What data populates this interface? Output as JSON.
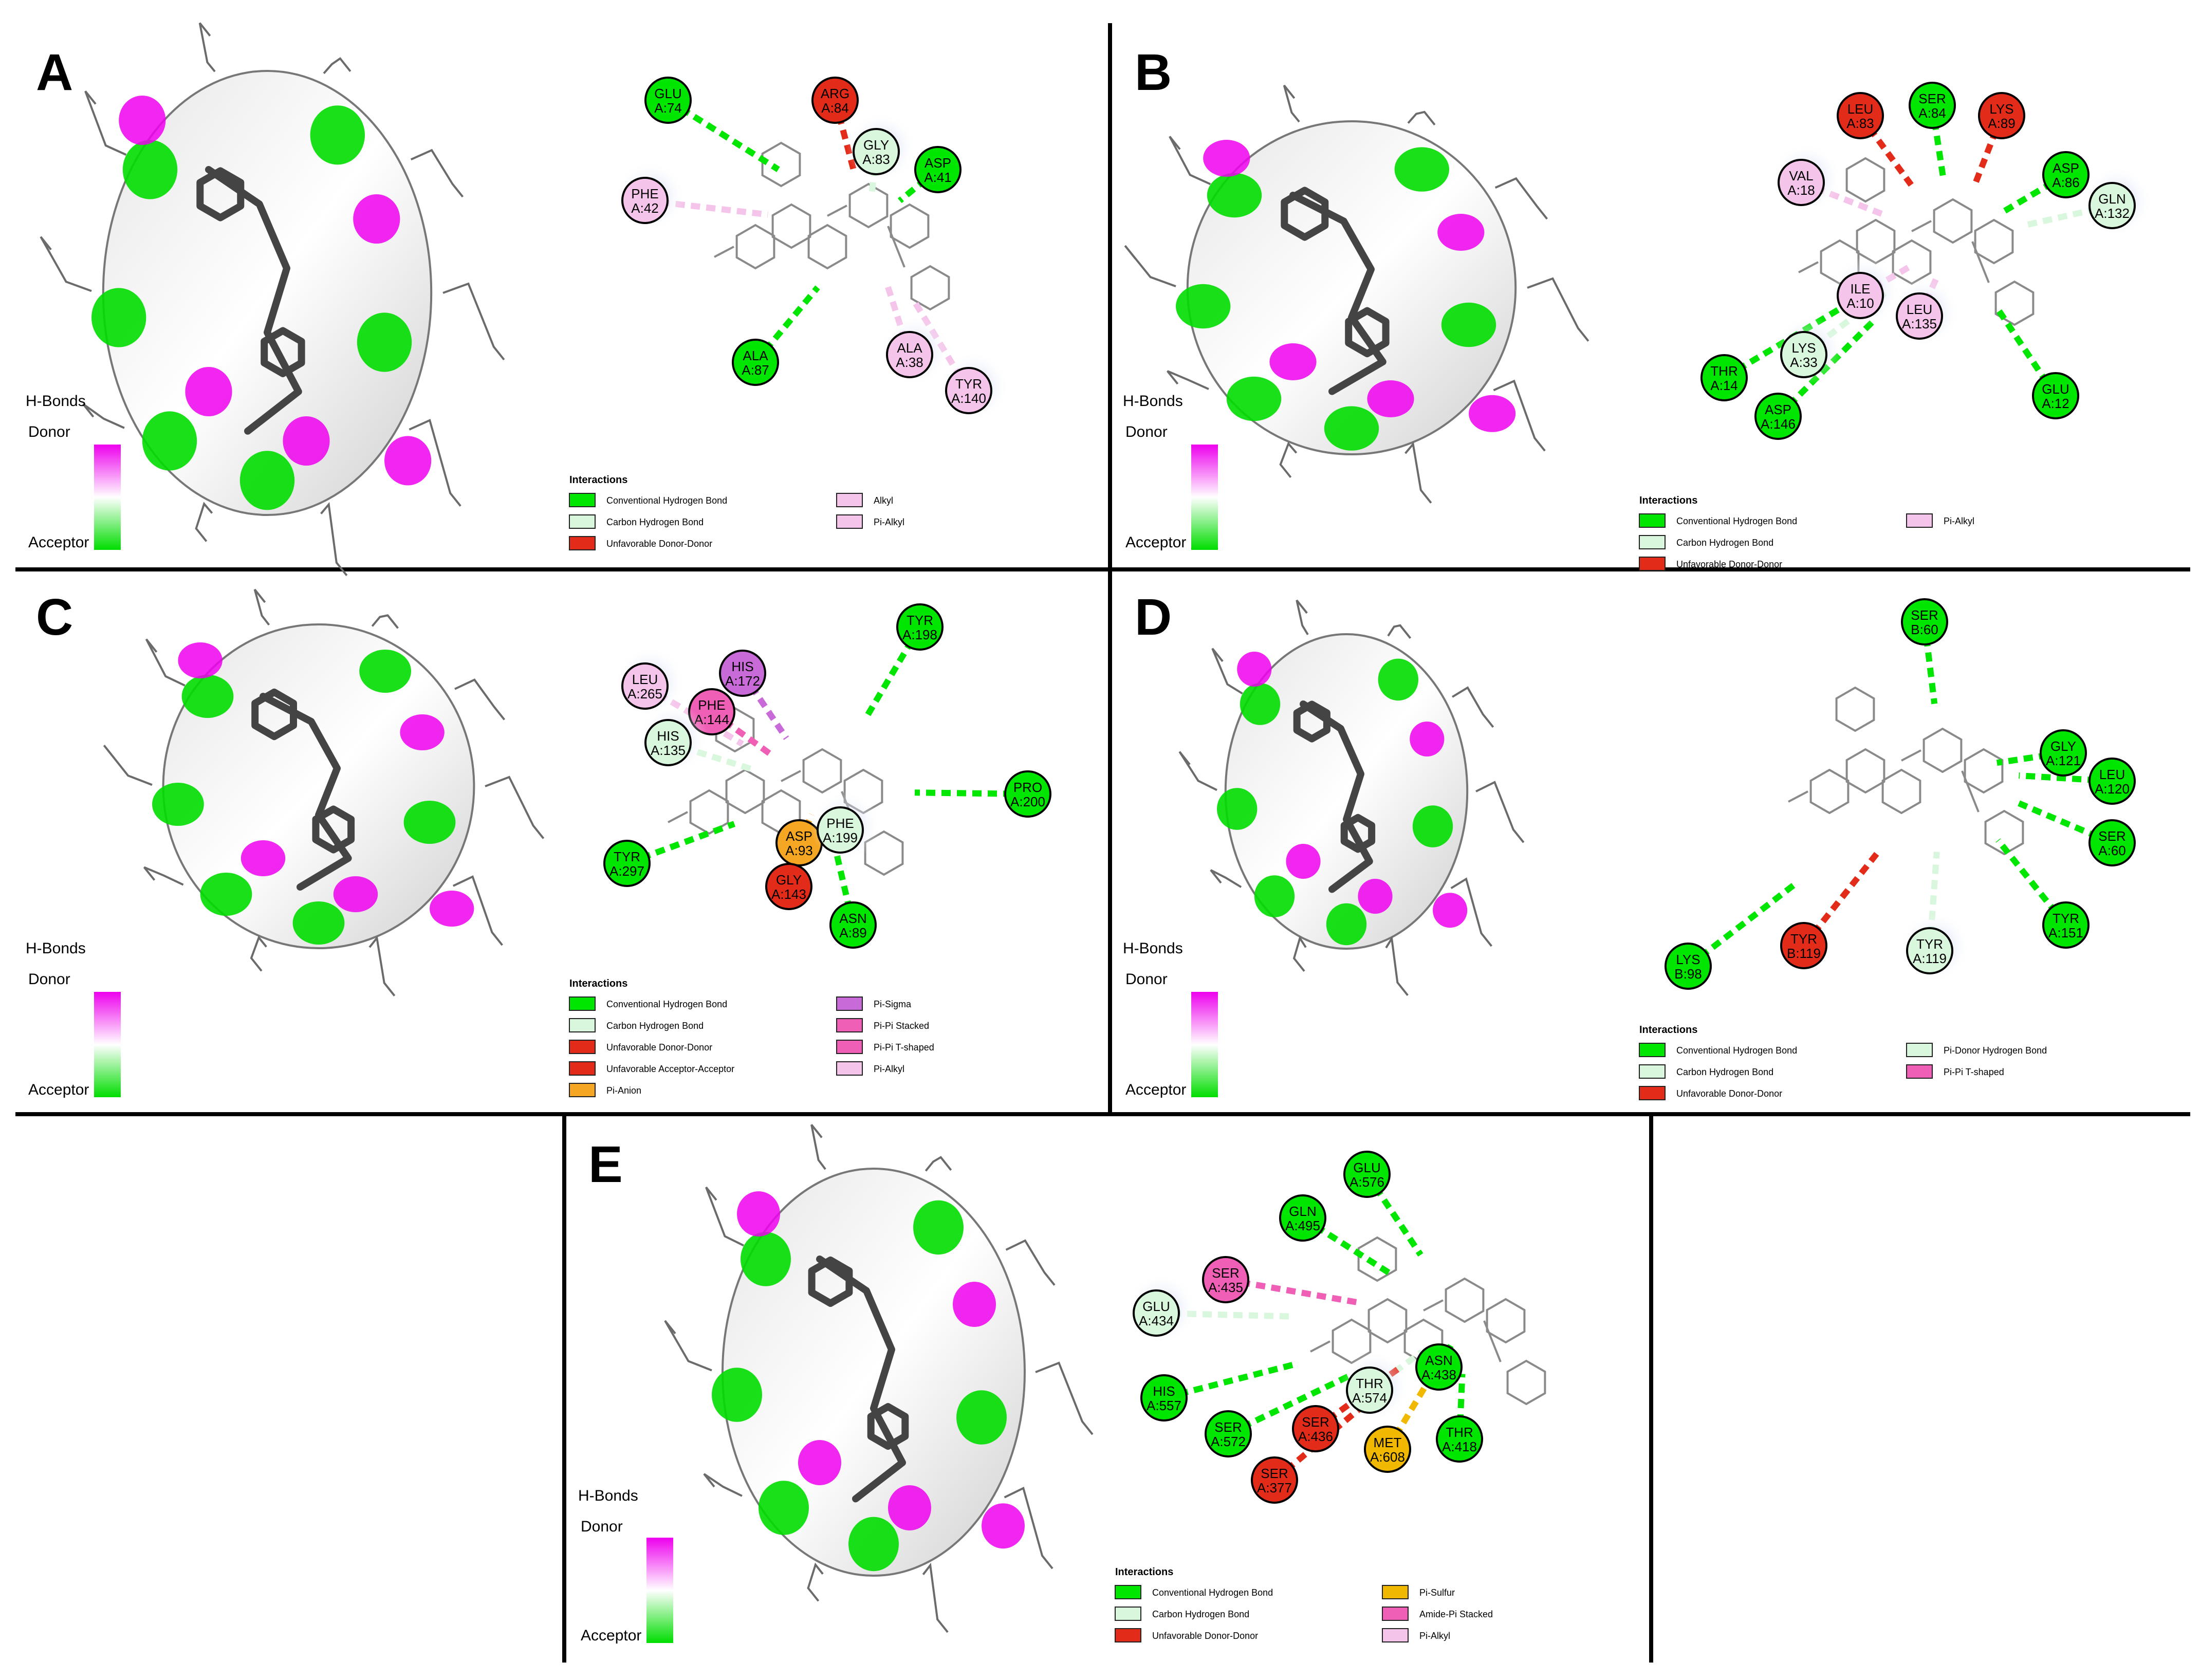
{
  "figure": {
    "hbonds_label": "H-Bonds",
    "donor_label": "Donor",
    "acceptor_label": "Acceptor",
    "legend_title": "Interactions"
  },
  "colors": {
    "conventional_hbond": "#00e600",
    "carbon_hbond": "#d9f7dd",
    "unfavorable": "#e32b1a",
    "pi_anion": "#f5a623",
    "pi_sulfur": "#f0b800",
    "pi_sigma": "#c86bd8",
    "pi_pi": "#ef5fb5",
    "pi_alkyl": "#f5c4ea",
    "surface_donor": "#ee00ee",
    "surface_acceptor": "#00dd00"
  },
  "panels": [
    {
      "letter": "A",
      "residues": [
        {
          "name": "GLU",
          "id": "A:74",
          "type": "conventional_hbond"
        },
        {
          "name": "ARG",
          "id": "A:84",
          "type": "unfavorable"
        },
        {
          "name": "GLY",
          "id": "A:83",
          "type": "carbon_hbond"
        },
        {
          "name": "ASP",
          "id": "A:41",
          "type": "conventional_hbond"
        },
        {
          "name": "PHE",
          "id": "A:42",
          "type": "pi_alkyl"
        },
        {
          "name": "ALA",
          "id": "A:87",
          "type": "conventional_hbond"
        },
        {
          "name": "ALA",
          "id": "A:38",
          "type": "pi_alkyl"
        },
        {
          "name": "TYR",
          "id": "A:140",
          "type": "pi_alkyl"
        }
      ],
      "legend": [
        {
          "label": "Conventional Hydrogen Bond",
          "type": "conventional_hbond"
        },
        {
          "label": "Carbon Hydrogen Bond",
          "type": "carbon_hbond"
        },
        {
          "label": "Unfavorable Donor-Donor",
          "type": "unfavorable"
        },
        {
          "label": "Alkyl",
          "type": "pi_alkyl"
        },
        {
          "label": "Pi-Alkyl",
          "type": "pi_alkyl"
        }
      ]
    },
    {
      "letter": "B",
      "residues": [
        {
          "name": "LEU",
          "id": "A:83",
          "type": "unfavorable"
        },
        {
          "name": "SER",
          "id": "A:84",
          "type": "conventional_hbond"
        },
        {
          "name": "LYS",
          "id": "A:89",
          "type": "unfavorable"
        },
        {
          "name": "VAL",
          "id": "A:18",
          "type": "pi_alkyl"
        },
        {
          "name": "ASP",
          "id": "A:86",
          "type": "conventional_hbond"
        },
        {
          "name": "GLN",
          "id": "A:132",
          "type": "carbon_hbond"
        },
        {
          "name": "ILE",
          "id": "A:10",
          "type": "pi_alkyl"
        },
        {
          "name": "LEU",
          "id": "A:135",
          "type": "pi_alkyl"
        },
        {
          "name": "LYS",
          "id": "A:33",
          "type": "carbon_hbond"
        },
        {
          "name": "THR",
          "id": "A:14",
          "type": "conventional_hbond"
        },
        {
          "name": "ASP",
          "id": "A:146",
          "type": "conventional_hbond"
        },
        {
          "name": "GLU",
          "id": "A:12",
          "type": "conventional_hbond"
        }
      ],
      "legend": [
        {
          "label": "Conventional Hydrogen Bond",
          "type": "conventional_hbond"
        },
        {
          "label": "Carbon Hydrogen Bond",
          "type": "carbon_hbond"
        },
        {
          "label": "Unfavorable Donor-Donor",
          "type": "unfavorable"
        },
        {
          "label": "Pi-Alkyl",
          "type": "pi_alkyl"
        }
      ]
    },
    {
      "letter": "C",
      "residues": [
        {
          "name": "TYR",
          "id": "A:198",
          "type": "conventional_hbond"
        },
        {
          "name": "HIS",
          "id": "A:172",
          "type": "pi_sigma"
        },
        {
          "name": "LEU",
          "id": "A:265",
          "type": "pi_alkyl"
        },
        {
          "name": "PHE",
          "id": "A:144",
          "type": "pi_pi"
        },
        {
          "name": "HIS",
          "id": "A:135",
          "type": "carbon_hbond"
        },
        {
          "name": "PRO",
          "id": "A:200",
          "type": "conventional_hbond"
        },
        {
          "name": "ASP",
          "id": "A:93",
          "type": "pi_anion"
        },
        {
          "name": "PHE",
          "id": "A:199",
          "type": "carbon_hbond"
        },
        {
          "name": "TYR",
          "id": "A:297",
          "type": "conventional_hbond"
        },
        {
          "name": "GLY",
          "id": "A:143",
          "type": "unfavorable"
        },
        {
          "name": "ASN",
          "id": "A:89",
          "type": "conventional_hbond"
        }
      ],
      "legend": [
        {
          "label": "Conventional Hydrogen Bond",
          "type": "conventional_hbond"
        },
        {
          "label": "Carbon Hydrogen Bond",
          "type": "carbon_hbond"
        },
        {
          "label": "Unfavorable Donor-Donor",
          "type": "unfavorable"
        },
        {
          "label": "Unfavorable Acceptor-Acceptor",
          "type": "unfavorable"
        },
        {
          "label": "Pi-Anion",
          "type": "pi_anion"
        },
        {
          "label": "Pi-Sigma",
          "type": "pi_sigma"
        },
        {
          "label": "Pi-Pi Stacked",
          "type": "pi_pi"
        },
        {
          "label": "Pi-Pi T-shaped",
          "type": "pi_pi"
        },
        {
          "label": "Pi-Alkyl",
          "type": "pi_alkyl"
        }
      ]
    },
    {
      "letter": "D",
      "residues": [
        {
          "name": "SER",
          "id": "B:60",
          "type": "conventional_hbond"
        },
        {
          "name": "GLY",
          "id": "A:121",
          "type": "conventional_hbond"
        },
        {
          "name": "LEU",
          "id": "A:120",
          "type": "conventional_hbond"
        },
        {
          "name": "SER",
          "id": "A:60",
          "type": "conventional_hbond"
        },
        {
          "name": "TYR",
          "id": "A:151",
          "type": "conventional_hbond"
        },
        {
          "name": "TYR",
          "id": "B:119",
          "type": "unfavorable"
        },
        {
          "name": "TYR",
          "id": "A:119",
          "type": "carbon_hbond"
        },
        {
          "name": "LYS",
          "id": "B:98",
          "type": "conventional_hbond"
        }
      ],
      "legend": [
        {
          "label": "Conventional Hydrogen Bond",
          "type": "conventional_hbond"
        },
        {
          "label": "Carbon Hydrogen Bond",
          "type": "carbon_hbond"
        },
        {
          "label": "Unfavorable Donor-Donor",
          "type": "unfavorable"
        },
        {
          "label": "Pi-Donor Hydrogen Bond",
          "type": "carbon_hbond"
        },
        {
          "label": "Pi-Pi T-shaped",
          "type": "pi_pi"
        }
      ]
    },
    {
      "letter": "E",
      "residues": [
        {
          "name": "GLU",
          "id": "A:576",
          "type": "conventional_hbond"
        },
        {
          "name": "GLN",
          "id": "A:495",
          "type": "conventional_hbond"
        },
        {
          "name": "SER",
          "id": "A:435",
          "type": "pi_pi"
        },
        {
          "name": "GLU",
          "id": "A:434",
          "type": "carbon_hbond"
        },
        {
          "name": "ASN",
          "id": "A:438",
          "type": "conventional_hbond"
        },
        {
          "name": "THR",
          "id": "A:574",
          "type": "carbon_hbond"
        },
        {
          "name": "HIS",
          "id": "A:557",
          "type": "conventional_hbond"
        },
        {
          "name": "SER",
          "id": "A:572",
          "type": "conventional_hbond"
        },
        {
          "name": "SER",
          "id": "A:436",
          "type": "unfavorable"
        },
        {
          "name": "MET",
          "id": "A:608",
          "type": "pi_sulfur"
        },
        {
          "name": "THR",
          "id": "A:418",
          "type": "conventional_hbond"
        },
        {
          "name": "SER",
          "id": "A:377",
          "type": "unfavorable"
        }
      ],
      "legend": [
        {
          "label": "Conventional Hydrogen Bond",
          "type": "conventional_hbond"
        },
        {
          "label": "Carbon Hydrogen Bond",
          "type": "carbon_hbond"
        },
        {
          "label": "Unfavorable Donor-Donor",
          "type": "unfavorable"
        },
        {
          "label": "Pi-Sulfur",
          "type": "pi_sulfur"
        },
        {
          "label": "Amide-Pi Stacked",
          "type": "pi_pi"
        },
        {
          "label": "Pi-Alkyl",
          "type": "pi_alkyl"
        }
      ]
    }
  ]
}
